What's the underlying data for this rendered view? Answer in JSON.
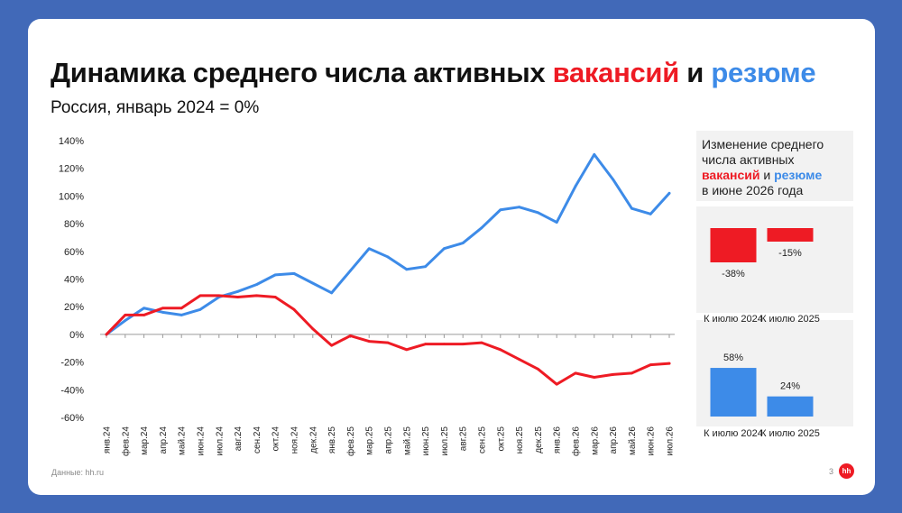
{
  "title": {
    "part1": "Динамика среднего числа активных ",
    "vacancies": "вакансий",
    "and": " и ",
    "resumes": "резюме"
  },
  "subtitle": "Россия, январь 2024 = 0%",
  "colors": {
    "vacancies": "#ee1b24",
    "resumes": "#3d8be8",
    "background": "#4169b8"
  },
  "chart_data": [
    {
      "type": "line",
      "categories": [
        "янв.24",
        "фев.24",
        "мар.24",
        "апр.24",
        "май.24",
        "июн.24",
        "июл.24",
        "авг.24",
        "сен.24",
        "окт.24",
        "ноя.24",
        "дек.24",
        "янв.25",
        "фев.25",
        "мар.25",
        "апр.25",
        "май.25",
        "июн.25",
        "июл.25",
        "авг.25",
        "сен.25",
        "окт.25",
        "ноя.25",
        "дек.25",
        "янв.26",
        "фев.26",
        "мар.26",
        "апр.26",
        "май.26",
        "июн.26",
        "июл.26"
      ],
      "series": [
        {
          "color": "#3d8be8",
          "values": [
            0,
            10,
            19,
            16,
            14,
            18,
            27,
            31,
            36,
            43,
            44,
            37,
            30,
            46,
            62,
            56,
            47,
            49,
            62,
            66,
            77,
            90,
            92,
            88,
            81,
            107,
            130,
            112,
            91,
            87,
            102
          ]
        },
        {
          "color": "#ee1b24",
          "values": [
            0,
            14,
            14,
            19,
            19,
            28,
            28,
            27,
            28,
            27,
            18,
            4,
            -8,
            -1,
            -5,
            -6,
            -11,
            -7,
            -7,
            -7,
            -6,
            -11,
            -18,
            -25,
            -36,
            -28,
            -31,
            -29,
            -28,
            -22,
            -21
          ]
        }
      ],
      "ylim": [
        -60,
        140
      ],
      "yticks": [
        "140%",
        "120%",
        "100%",
        "80%",
        "60%",
        "40%",
        "20%",
        "0%",
        "-20%",
        "-40%",
        "-60%"
      ],
      "grid": false,
      "legend": "none"
    },
    {
      "type": "bar",
      "categories": [
        "К июлю 2024",
        "К июлю 2025"
      ],
      "values": [
        -38,
        -15
      ],
      "labels": [
        "-38%",
        "-15%"
      ],
      "color": "#ee1b24"
    },
    {
      "type": "bar",
      "categories": [
        "К июлю 2024",
        "К июлю 2025"
      ],
      "values": [
        58,
        24
      ],
      "labels": [
        "58%",
        "24%"
      ],
      "color": "#3d8be8"
    }
  ],
  "panel": {
    "line1": "Изменение среднего",
    "line2": "числа активных",
    "vacancies": "вакансий",
    "and": " и ",
    "resumes": "резюме",
    "line4": "в июне 2026 года"
  },
  "footer": {
    "source": "Данные: hh.ru",
    "page": "3",
    "logo": "hh"
  }
}
